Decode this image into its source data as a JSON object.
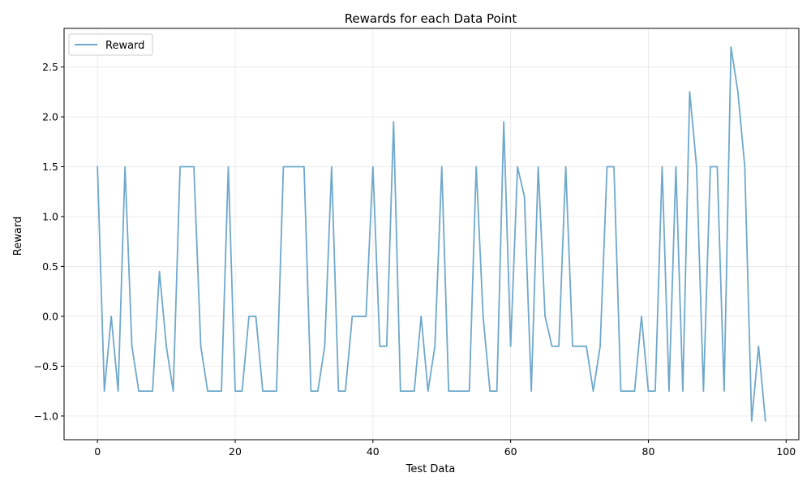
{
  "chart_data": {
    "type": "line",
    "title": "Rewards for each Data Point",
    "xlabel": "Test Data",
    "ylabel": "Reward",
    "xlim": [
      -4.85,
      101.85
    ],
    "ylim": [
      -1.237,
      2.887
    ],
    "xticks": [
      0,
      20,
      40,
      60,
      80,
      100
    ],
    "yticks": [
      -1.0,
      -0.5,
      0.0,
      0.5,
      1.0,
      1.5,
      2.0,
      2.5
    ],
    "xtick_labels": [
      "0",
      "20",
      "40",
      "60",
      "80",
      "100"
    ],
    "ytick_labels": [
      "−1.0",
      "−0.5",
      "0.0",
      "0.5",
      "1.0",
      "1.5",
      "2.0",
      "2.5"
    ],
    "grid": true,
    "legend": "top-left",
    "series": [
      {
        "name": "Reward",
        "color": "#6fa8cc",
        "x": [
          0,
          1,
          2,
          3,
          4,
          5,
          6,
          7,
          8,
          9,
          10,
          11,
          12,
          13,
          14,
          15,
          16,
          17,
          18,
          19,
          20,
          21,
          22,
          23,
          24,
          25,
          26,
          27,
          28,
          29,
          30,
          31,
          32,
          33,
          34,
          35,
          36,
          37,
          38,
          39,
          40,
          41,
          42,
          43,
          44,
          45,
          46,
          47,
          48,
          49,
          50,
          51,
          52,
          53,
          54,
          55,
          56,
          57,
          58,
          59,
          60,
          61,
          62,
          63,
          64,
          65,
          66,
          67,
          68,
          69,
          70,
          71,
          72,
          73,
          74,
          75,
          76,
          77,
          78,
          79,
          80,
          81,
          82,
          83,
          84,
          85,
          86,
          87,
          88,
          89,
          90,
          91,
          92,
          93,
          94,
          95,
          96,
          97
        ],
        "values": [
          1.5,
          -0.75,
          0.0,
          -0.75,
          1.5,
          -0.3,
          -0.75,
          -0.75,
          -0.75,
          0.45,
          -0.3,
          -0.75,
          1.5,
          1.5,
          1.5,
          -0.3,
          -0.75,
          -0.75,
          -0.75,
          1.5,
          -0.75,
          -0.75,
          0.0,
          0.0,
          -0.75,
          -0.75,
          -0.75,
          1.5,
          1.5,
          1.5,
          1.5,
          -0.75,
          -0.75,
          -0.3,
          1.5,
          -0.75,
          -0.75,
          0.0,
          0.0,
          0.0,
          1.5,
          -0.3,
          -0.3,
          1.95,
          -0.75,
          -0.75,
          -0.75,
          0.0,
          -0.75,
          -0.3,
          1.5,
          -0.75,
          -0.75,
          -0.75,
          -0.75,
          1.5,
          0.0,
          -0.75,
          -0.75,
          1.95,
          -0.3,
          1.5,
          1.2,
          -0.75,
          1.5,
          0.0,
          -0.3,
          -0.3,
          1.5,
          -0.3,
          -0.3,
          -0.3,
          -0.75,
          -0.3,
          1.5,
          1.5,
          -0.75,
          -0.75,
          -0.75,
          0.0,
          -0.75,
          -0.75,
          1.5,
          -0.75,
          1.5,
          -0.75,
          2.25,
          1.5,
          -0.75,
          1.5,
          1.5,
          -0.75,
          2.7,
          2.25,
          1.5,
          -1.05,
          -0.3,
          -1.05
        ]
      }
    ]
  }
}
